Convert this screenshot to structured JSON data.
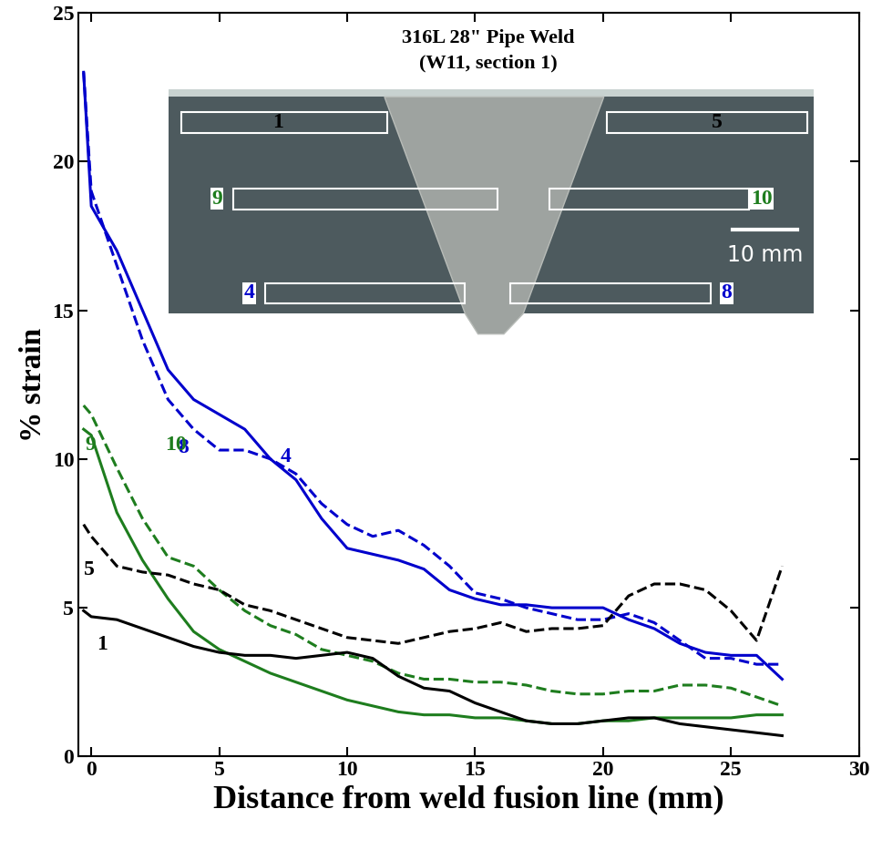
{
  "chart_data": {
    "type": "line",
    "xlabel": "Distance from weld fusion line (mm)",
    "ylabel": "% strain",
    "x": [
      -0.3,
      0,
      1,
      2,
      3,
      4,
      5,
      6,
      7,
      8,
      9,
      10,
      11,
      12,
      13,
      14,
      15,
      16,
      17,
      18,
      19,
      20,
      21,
      22,
      23,
      24,
      25,
      26,
      27
    ],
    "series": [
      {
        "name": "4",
        "color": "#0000cc",
        "line_style": "solid",
        "values": [
          23,
          18.5,
          17,
          15,
          13,
          12,
          11.5,
          11,
          10,
          9.3,
          8,
          7,
          6.8,
          6.6,
          6.3,
          5.6,
          5.3,
          5.1,
          5.1,
          5,
          5,
          5,
          4.6,
          4.3,
          3.8,
          3.5,
          3.4,
          3.4,
          2.6
        ]
      },
      {
        "name": "8",
        "color": "#0000cc",
        "line_style": "dashed",
        "values": [
          23,
          19,
          16.5,
          14,
          12,
          11,
          10.3,
          10.3,
          10,
          9.5,
          8.5,
          7.8,
          7.4,
          7.6,
          7.1,
          6.4,
          5.5,
          5.3,
          5,
          4.8,
          4.6,
          4.6,
          4.8,
          4.5,
          3.9,
          3.3,
          3.3,
          3.1,
          3.1
        ]
      },
      {
        "name": "9",
        "color": "#1e7d1e",
        "line_style": "solid",
        "values": [
          11,
          10.8,
          8.2,
          6.6,
          5.3,
          4.2,
          3.6,
          3.2,
          2.8,
          2.5,
          2.2,
          1.9,
          1.7,
          1.5,
          1.4,
          1.4,
          1.3,
          1.3,
          1.2,
          1.1,
          1.1,
          1.2,
          1.2,
          1.3,
          1.3,
          1.3,
          1.3,
          1.4,
          1.4
        ]
      },
      {
        "name": "10",
        "color": "#1e7d1e",
        "line_style": "dashed",
        "values": [
          11.8,
          11.5,
          9.7,
          8.0,
          6.7,
          6.4,
          5.6,
          4.9,
          4.4,
          4.1,
          3.6,
          3.4,
          3.2,
          2.8,
          2.6,
          2.6,
          2.5,
          2.5,
          2.4,
          2.2,
          2.1,
          2.1,
          2.2,
          2.2,
          2.4,
          2.4,
          2.3,
          2.0,
          1.7
        ]
      },
      {
        "name": "5",
        "color": "#000000",
        "line_style": "dashed",
        "values": [
          7.8,
          7.4,
          6.4,
          6.2,
          6.1,
          5.8,
          5.6,
          5.1,
          4.9,
          4.6,
          4.3,
          4.0,
          3.9,
          3.8,
          4.0,
          4.2,
          4.3,
          4.5,
          4.2,
          4.3,
          4.3,
          4.4,
          5.4,
          5.8,
          5.8,
          5.6,
          4.9,
          3.9,
          6.4
        ]
      },
      {
        "name": "1",
        "color": "#000000",
        "line_style": "solid",
        "values": [
          4.9,
          4.7,
          4.6,
          4.3,
          4.0,
          3.7,
          3.5,
          3.4,
          3.4,
          3.3,
          3.4,
          3.5,
          3.3,
          2.7,
          2.3,
          2.2,
          1.8,
          1.5,
          1.2,
          1.1,
          1.1,
          1.2,
          1.3,
          1.3,
          1.1,
          1.0,
          0.9,
          0.8,
          0.7
        ]
      }
    ],
    "xlim": [
      -0.5,
      30
    ],
    "xticks": [
      0,
      5,
      10,
      15,
      20,
      25,
      30
    ],
    "ylim": [
      0,
      25
    ],
    "yticks": [
      0,
      5,
      10,
      15,
      20,
      25
    ],
    "inset": {
      "title": "316L 28\" Pipe Weld",
      "subtitle": "(W11, section 1)",
      "boxes": [
        "1",
        "5",
        "9",
        "10",
        "4",
        "8"
      ],
      "scale_bar": "10 mm"
    }
  }
}
